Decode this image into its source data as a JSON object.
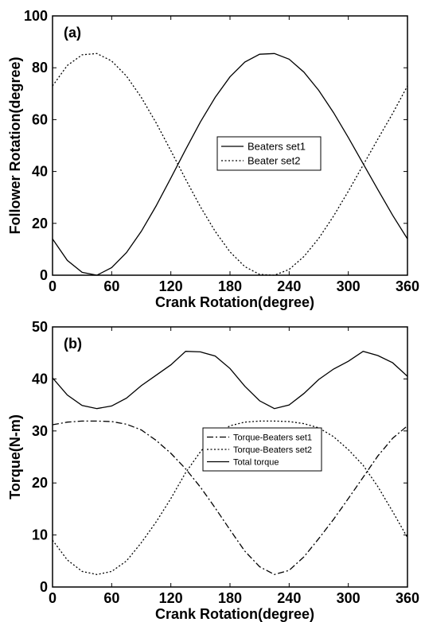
{
  "chart_data": [
    {
      "type": "line",
      "panel_label": "(a)",
      "xlabel": "Crank Rotation(degree)",
      "ylabel": "Follower Rotation(degree)",
      "xlim": [
        0,
        360
      ],
      "ylim": [
        0,
        100
      ],
      "xticks": [
        0,
        60,
        120,
        180,
        240,
        300,
        360
      ],
      "yticks": [
        0,
        20,
        40,
        60,
        80,
        100
      ],
      "legend_position": "center-right",
      "series": [
        {
          "name": "Beaters set1",
          "style": "solid",
          "x": [
            0,
            15,
            30,
            45,
            60,
            75,
            90,
            105,
            120,
            135,
            150,
            165,
            180,
            195,
            210,
            225,
            240,
            255,
            270,
            285,
            300,
            315,
            330,
            345,
            360
          ],
          "y": [
            14,
            5.7,
            1.1,
            0,
            2.9,
            8.7,
            16.9,
            26.7,
            37.5,
            48.5,
            59.1,
            68.6,
            76.5,
            82.2,
            85.2,
            85.5,
            83.3,
            78.3,
            71.3,
            62.7,
            53.1,
            43.0,
            33.0,
            23.1,
            14
          ]
        },
        {
          "name": "Beater set2",
          "style": "dotted",
          "x": [
            0,
            15,
            30,
            45,
            60,
            75,
            90,
            105,
            120,
            135,
            150,
            165,
            180,
            195,
            210,
            225,
            240,
            255,
            270,
            285,
            300,
            315,
            330,
            345,
            360
          ],
          "y": [
            73,
            80.9,
            85.0,
            85.5,
            82.6,
            76.8,
            68.6,
            58.8,
            48.0,
            37.0,
            26.4,
            16.9,
            9.0,
            3.3,
            0.3,
            0,
            2.2,
            7.2,
            14.2,
            22.8,
            32.4,
            42.5,
            52.5,
            62.4,
            73
          ]
        }
      ]
    },
    {
      "type": "line",
      "panel_label": "(b)",
      "xlabel": "Crank Rotation(degree)",
      "ylabel": "Torque(N-m)",
      "xlim": [
        0,
        360
      ],
      "ylim": [
        0,
        50
      ],
      "xticks": [
        0,
        60,
        120,
        180,
        240,
        300,
        360
      ],
      "yticks": [
        0,
        10,
        20,
        30,
        40,
        50
      ],
      "legend_position": "center-right",
      "series": [
        {
          "name": "Torque-Beaters set1",
          "style": "dashdot",
          "x": [
            0,
            15,
            30,
            45,
            60,
            75,
            90,
            105,
            120,
            135,
            150,
            165,
            180,
            195,
            210,
            225,
            240,
            255,
            270,
            285,
            300,
            315,
            330,
            345,
            360
          ],
          "y": [
            31.2,
            31.7,
            31.9,
            31.9,
            31.8,
            31.3,
            30.2,
            28.2,
            25.7,
            22.7,
            19.2,
            15.2,
            11.0,
            6.9,
            3.9,
            2.4,
            3.2,
            5.8,
            9.3,
            13.0,
            17.0,
            21.1,
            25.2,
            28.6,
            31.0
          ]
        },
        {
          "name": "Torque-Beaters set2",
          "style": "dotted",
          "x": [
            0,
            15,
            30,
            45,
            60,
            75,
            90,
            105,
            120,
            135,
            150,
            165,
            180,
            195,
            210,
            225,
            240,
            255,
            270,
            285,
            300,
            315,
            330,
            345,
            360
          ],
          "y": [
            9.0,
            5.2,
            3.0,
            2.4,
            3.0,
            5.0,
            8.5,
            12.5,
            17.0,
            22.0,
            26.0,
            29.2,
            31.0,
            31.7,
            31.9,
            31.9,
            31.8,
            31.4,
            30.6,
            28.9,
            26.4,
            23.4,
            19.3,
            14.5,
            9.5
          ]
        },
        {
          "name": "Total torque",
          "style": "solid",
          "x": [
            0,
            15,
            30,
            45,
            60,
            75,
            90,
            105,
            120,
            135,
            150,
            165,
            180,
            195,
            210,
            225,
            240,
            255,
            270,
            285,
            300,
            315,
            330,
            345,
            360
          ],
          "y": [
            40.2,
            36.9,
            34.9,
            34.3,
            34.8,
            36.3,
            38.7,
            40.7,
            42.7,
            45.3,
            45.2,
            44.4,
            42.0,
            38.6,
            35.8,
            34.3,
            35.0,
            37.2,
            39.9,
            41.9,
            43.4,
            45.3,
            44.5,
            43.1,
            40.5
          ]
        }
      ]
    }
  ]
}
